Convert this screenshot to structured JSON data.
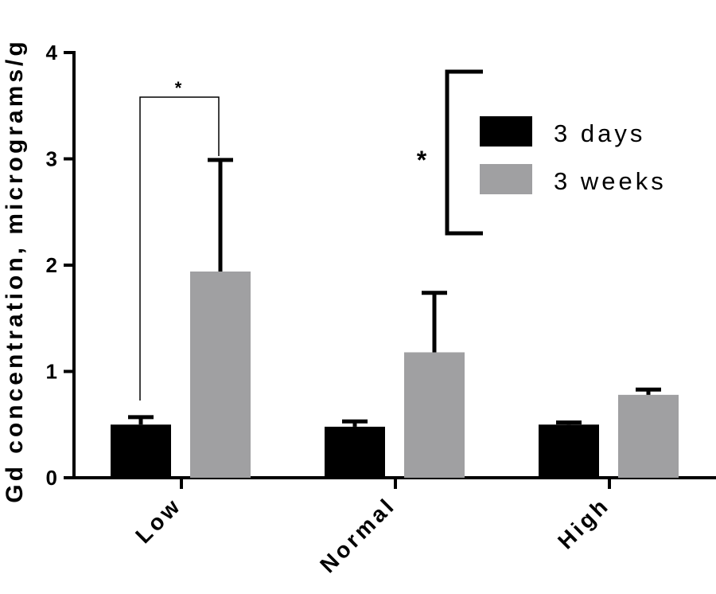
{
  "chart_data": {
    "type": "bar",
    "ylabel": "Gd concentration, micrograms/g",
    "ylim": [
      0,
      4
    ],
    "yticks": [
      "0",
      "1",
      "2",
      "3",
      "4"
    ],
    "categories": [
      "Low",
      "Normal",
      "High"
    ],
    "series": [
      {
        "name": "3 days",
        "color": "#000000",
        "values": [
          0.5,
          0.48,
          0.5
        ],
        "errors": [
          0.07,
          0.05,
          0.02
        ]
      },
      {
        "name": "3 weeks",
        "color": "#a0a0a2",
        "values": [
          1.94,
          1.18,
          0.78
        ],
        "errors": [
          1.05,
          0.56,
          0.05
        ]
      }
    ],
    "annotations": [
      {
        "text": "*",
        "between": "Low 3 days vs Low 3 weeks"
      },
      {
        "text": "*",
        "between": "3 days vs 3 weeks"
      }
    ],
    "legend": "top-right",
    "grid": false
  }
}
